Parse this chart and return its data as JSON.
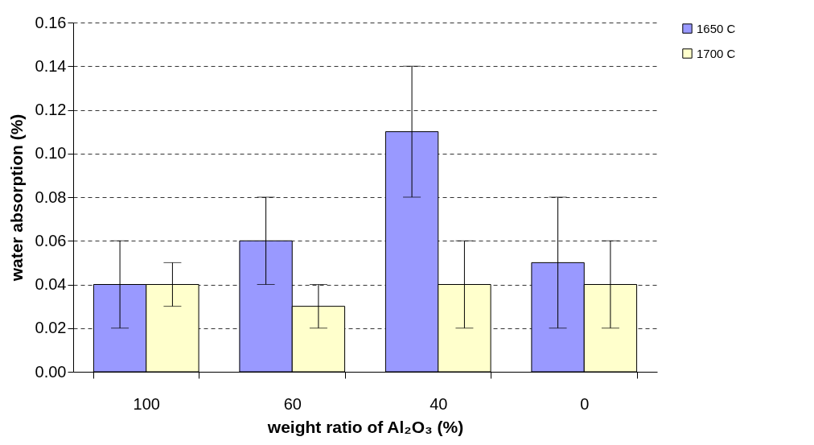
{
  "chart_data": {
    "type": "bar",
    "xlabel": "weight ratio of Al₂O₃ (%)",
    "ylabel": "water absorption (%)",
    "categories": [
      "100",
      "60",
      "40",
      "0"
    ],
    "series": [
      {
        "name": "1650 C",
        "color": "#9999ff",
        "values": [
          0.04,
          0.06,
          0.11,
          0.05
        ],
        "errors": [
          [
            0.02,
            0.06
          ],
          [
            0.04,
            0.08
          ],
          [
            0.08,
            0.14
          ],
          [
            0.02,
            0.08
          ]
        ]
      },
      {
        "name": "1700 C",
        "color": "#ffffcc",
        "values": [
          0.04,
          0.03,
          0.04,
          0.04
        ],
        "errors": [
          [
            0.03,
            0.05
          ],
          [
            0.02,
            0.04
          ],
          [
            0.02,
            0.06
          ],
          [
            0.02,
            0.06
          ]
        ]
      }
    ],
    "ylim": [
      0,
      0.16
    ],
    "yticks": [
      {
        "value": 0,
        "label": "0.00"
      },
      {
        "value": 0.02,
        "label": "0.02"
      },
      {
        "value": 0.04,
        "label": "0.04"
      },
      {
        "value": 0.06,
        "label": "0.06"
      },
      {
        "value": 0.08,
        "label": "0.08"
      },
      {
        "value": 0.1,
        "label": "0.10"
      },
      {
        "value": 0.12,
        "label": "0.12"
      },
      {
        "value": 0.14,
        "label": "0.14"
      },
      {
        "value": 0.16,
        "label": "0.16"
      }
    ],
    "grid": "y",
    "legend": "right"
  }
}
